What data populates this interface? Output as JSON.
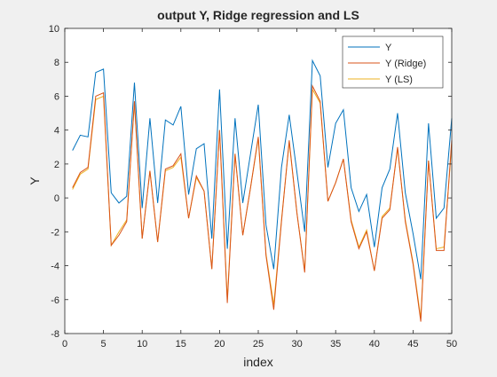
{
  "chart_data": {
    "type": "line",
    "title": "output Y, Ridge regression and LS",
    "xlabel": "index",
    "ylabel": "Y",
    "xlim": [
      0,
      50
    ],
    "ylim": [
      -8,
      10
    ],
    "xticks": [
      0,
      5,
      10,
      15,
      20,
      25,
      30,
      35,
      40,
      45,
      50
    ],
    "yticks": [
      -8,
      -6,
      -4,
      -2,
      0,
      2,
      4,
      6,
      8,
      10
    ],
    "grid": false,
    "legend_position": "top-right",
    "x": [
      1,
      2,
      3,
      4,
      5,
      6,
      7,
      8,
      9,
      10,
      11,
      12,
      13,
      14,
      15,
      16,
      17,
      18,
      19,
      20,
      21,
      22,
      23,
      24,
      25,
      26,
      27,
      28,
      29,
      30,
      31,
      32,
      33,
      34,
      35,
      36,
      37,
      38,
      39,
      40,
      41,
      42,
      43,
      44,
      45,
      46,
      47,
      48,
      49,
      50
    ],
    "series": [
      {
        "name": "Y",
        "color": "#0072BD",
        "values": [
          2.8,
          3.7,
          3.6,
          7.4,
          7.6,
          0.3,
          -0.3,
          0.1,
          6.8,
          -0.6,
          4.7,
          -0.3,
          4.6,
          4.3,
          5.4,
          0.2,
          2.9,
          3.2,
          -2.4,
          6.4,
          -3.0,
          4.7,
          -0.3,
          2.6,
          5.5,
          -1.6,
          -4.2,
          1.8,
          4.9,
          1.5,
          -2.0,
          8.1,
          7.2,
          1.8,
          4.4,
          5.2,
          0.6,
          -0.8,
          0.2,
          -2.9,
          0.6,
          1.7,
          5.0,
          0.3,
          -2.1,
          -4.8,
          4.4,
          -1.2,
          -0.6,
          4.7
        ]
      },
      {
        "name": "Y (Ridge)",
        "color": "#D95319",
        "values": [
          0.6,
          1.5,
          1.8,
          6.0,
          6.2,
          -2.8,
          -2.2,
          -1.4,
          5.7,
          -2.4,
          1.6,
          -2.6,
          1.7,
          1.9,
          2.6,
          -1.2,
          1.3,
          0.4,
          -4.2,
          4.0,
          -6.2,
          2.6,
          -2.2,
          0.6,
          3.6,
          -3.4,
          -6.6,
          -1.4,
          3.4,
          -0.9,
          -4.4,
          6.6,
          5.7,
          -0.2,
          0.9,
          2.3,
          -1.4,
          -3.0,
          -2.0,
          -4.3,
          -1.2,
          -0.7,
          3.0,
          -1.4,
          -3.9,
          -7.3,
          2.2,
          -3.1,
          -3.1,
          3.4
        ]
      },
      {
        "name": "Y (LS)",
        "color": "#EDB120",
        "values": [
          0.5,
          1.4,
          1.7,
          5.8,
          6.0,
          -2.8,
          -2.0,
          -1.3,
          5.6,
          -2.4,
          1.6,
          -2.6,
          1.6,
          1.8,
          2.4,
          -1.2,
          1.2,
          0.4,
          -4.2,
          4.0,
          -6.0,
          2.6,
          -2.2,
          0.6,
          3.5,
          -3.3,
          -6.3,
          -1.3,
          3.3,
          -0.9,
          -4.3,
          6.4,
          5.6,
          -0.2,
          0.9,
          2.3,
          -1.3,
          -2.9,
          -1.9,
          -4.3,
          -1.1,
          -0.6,
          2.9,
          -1.3,
          -3.8,
          -7.1,
          2.2,
          -3.0,
          -2.9,
          3.2
        ]
      }
    ]
  }
}
